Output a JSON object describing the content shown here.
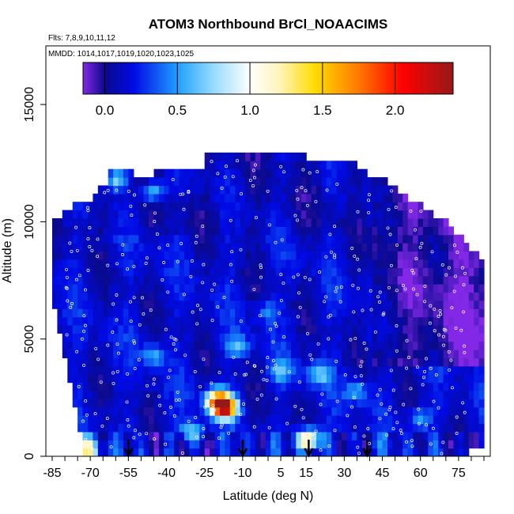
{
  "chart_data": {
    "type": "heatmap",
    "title": "ATOM3 Northbound BrCl_NOAACIMS",
    "flights_label": "Flts: 7,8,9,10,11,12",
    "dates_label": "MMDD: 1014,1017,1019,1020,1023,1025",
    "xlabel": "Latitude (deg N)",
    "ylabel": "Altitude (m)",
    "xlim": [
      -85,
      85
    ],
    "ylim": [
      0,
      17500
    ],
    "x_ticks": [
      -85,
      -70,
      -55,
      -40,
      -25,
      -10,
      5,
      15,
      30,
      45,
      60,
      75
    ],
    "y_ticks": [
      0,
      5000,
      10000,
      15000
    ],
    "colorbar": {
      "range": [
        -0.15,
        2.4
      ],
      "ticks": [
        0.0,
        0.5,
        1.0,
        1.5,
        2.0
      ],
      "tick_labels": [
        "0.0",
        "0.5",
        "1.0",
        "1.5",
        "2.0"
      ]
    },
    "hotspots": [
      {
        "lat": -17,
        "alt": 2100,
        "value": 2.2
      },
      {
        "lat": -20,
        "alt": 2400,
        "value": 1.6
      },
      {
        "lat": 16,
        "alt": 700,
        "value": 1.5
      },
      {
        "lat": -71,
        "alt": 300,
        "value": 1.2
      },
      {
        "lat": -60,
        "alt": 11800,
        "value": 0.75
      },
      {
        "lat": -45,
        "alt": 11300,
        "value": 0.7
      },
      {
        "lat": -45,
        "alt": 4300,
        "value": 0.55
      },
      {
        "lat": -12,
        "alt": 4700,
        "value": 0.6
      },
      {
        "lat": 20,
        "alt": 3500,
        "value": 0.65
      },
      {
        "lat": 35,
        "alt": 2800,
        "value": 0.6
      },
      {
        "lat": 5,
        "alt": 3600,
        "value": 0.55
      },
      {
        "lat": -30,
        "alt": 1100,
        "value": 0.7
      },
      {
        "lat": 0,
        "alt": 6200,
        "value": 0.45
      },
      {
        "lat": 60,
        "alt": 1600,
        "value": 0.55
      }
    ],
    "profile_arrows_lat": [
      -55,
      -10,
      16,
      39
    ]
  }
}
